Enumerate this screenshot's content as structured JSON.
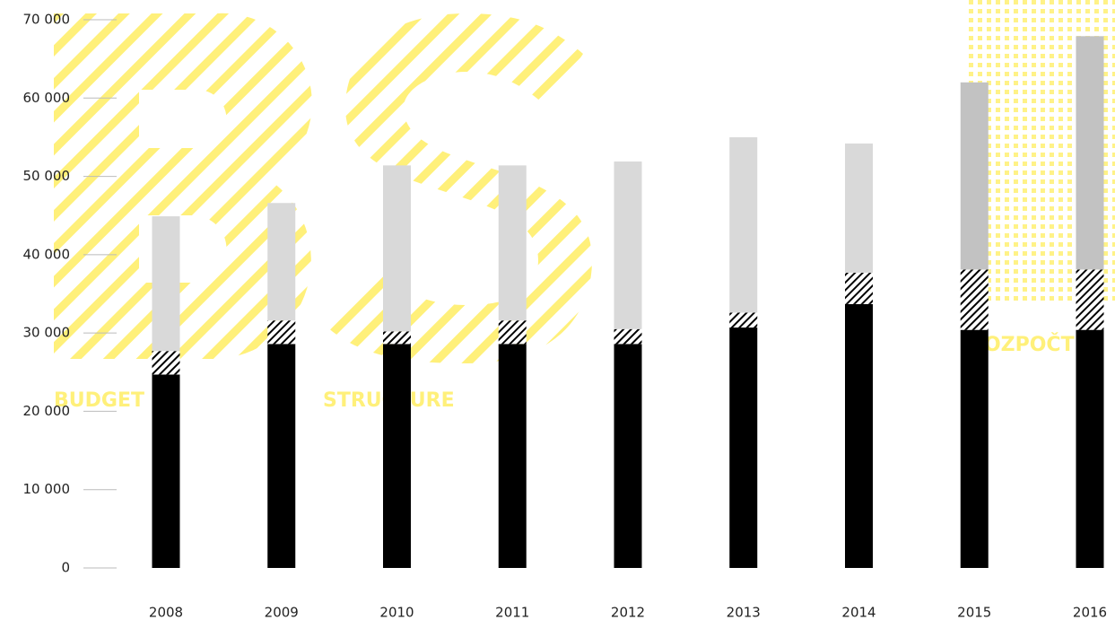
{
  "chart_data": {
    "type": "stacked-bar",
    "categories": [
      "2008",
      "2009",
      "2010",
      "2011",
      "2012",
      "2013",
      "2014",
      "2015",
      "2016"
    ],
    "series": [
      {
        "color": "#000000",
        "values": [
          24700,
          28600,
          28600,
          28600,
          28600,
          30700,
          33700,
          30400,
          30400
        ]
      },
      {
        "color": "hatch",
        "values": [
          3000,
          3000,
          1600,
          3000,
          1900,
          1900,
          4000,
          7700,
          7700
        ]
      },
      {
        "color": "#d9d9d9",
        "values": [
          17200,
          15000,
          21200,
          19800,
          21400,
          22400,
          16500,
          null,
          null
        ]
      },
      {
        "color": "#c2c2c2",
        "values": [
          null,
          null,
          null,
          null,
          null,
          null,
          null,
          23900,
          29800
        ]
      }
    ],
    "ylim": [
      0,
      70000
    ],
    "yticks": [
      0,
      {
        "value": 10000,
        "label": "10 000"
      },
      {
        "value": 20000,
        "label": "20 000"
      },
      {
        "value": 30000,
        "label": "30 000"
      },
      {
        "value": 40000,
        "label": "40 000"
      },
      {
        "value": 50000,
        "label": "50 000"
      },
      {
        "value": 60000,
        "label": "60 000"
      },
      {
        "value": 70000,
        "label": "70 000"
      }
    ],
    "background_words": [
      "BUDGET",
      "STRUCTURE",
      "ROZPOČTU"
    ]
  }
}
